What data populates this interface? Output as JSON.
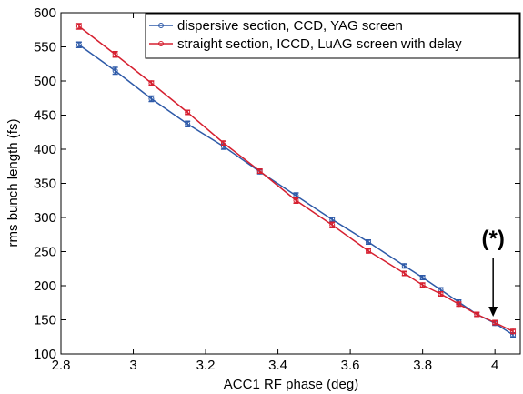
{
  "chart_data": {
    "type": "line",
    "xlabel": "ACC1 RF phase (deg)",
    "ylabel": "rms bunch length (fs)",
    "xlim": [
      2.8,
      4.07
    ],
    "ylim": [
      100,
      600
    ],
    "x_ticks": [
      2.8,
      3,
      3.2,
      3.4,
      3.6,
      3.8,
      4
    ],
    "x_tick_labels": [
      "2.8",
      "3",
      "3.2",
      "3.4",
      "3.6",
      "3.8",
      "4"
    ],
    "y_ticks": [
      100,
      150,
      200,
      250,
      300,
      350,
      400,
      450,
      500,
      550,
      600
    ],
    "y_tick_labels": [
      "100",
      "150",
      "200",
      "250",
      "300",
      "350",
      "400",
      "450",
      "500",
      "550",
      "600"
    ],
    "grid": false,
    "legend_position": "top-right",
    "series": [
      {
        "name": "dispersive section, CCD, YAG screen",
        "color": "#2e5aa8",
        "x": [
          2.85,
          2.95,
          3.05,
          3.15,
          3.25,
          3.35,
          3.45,
          3.55,
          3.65,
          3.75,
          3.8,
          3.85,
          3.9,
          3.95,
          4.0,
          4.05
        ],
        "y": [
          553,
          515,
          474,
          437,
          404,
          367,
          332,
          297,
          264,
          229,
          212,
          194,
          176,
          158,
          145,
          128
        ],
        "err": [
          4,
          5,
          4,
          4,
          4,
          3,
          4,
          3,
          3,
          3,
          3,
          3,
          3,
          3,
          3,
          3
        ]
      },
      {
        "name": "straight section, ICCD, LuAG screen with delay",
        "color": "#d62030",
        "x": [
          2.85,
          2.95,
          3.05,
          3.15,
          3.25,
          3.35,
          3.45,
          3.55,
          3.65,
          3.75,
          3.8,
          3.85,
          3.9,
          3.95,
          4.0,
          4.05
        ],
        "y": [
          580,
          539,
          497,
          454,
          409,
          368,
          325,
          289,
          251,
          218,
          201,
          188,
          173,
          158,
          146,
          133
        ],
        "err": [
          4,
          4,
          3,
          3,
          3,
          3,
          4,
          4,
          3,
          3,
          3,
          3,
          3,
          3,
          3,
          3
        ]
      }
    ],
    "annotations": [
      {
        "text": "(*)",
        "x": 4.0,
        "y": 148,
        "arrow": true
      }
    ]
  }
}
